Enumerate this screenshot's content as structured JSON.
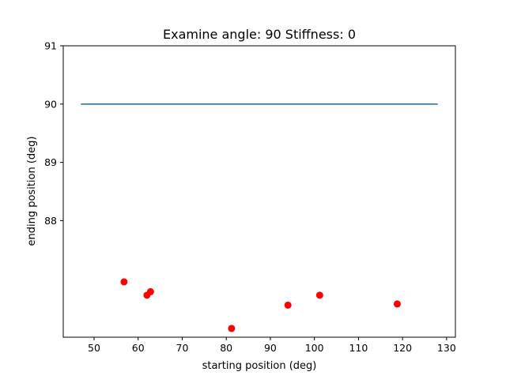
{
  "chart_data": {
    "type": "scatter",
    "title": "Examine angle: 90 Stiffness: 0",
    "xlabel": "starting position (deg)",
    "ylabel": "ending position (deg)",
    "xlim": [
      43,
      132
    ],
    "ylim": [
      86.0,
      91.0
    ],
    "xticks": [
      50,
      60,
      70,
      80,
      90,
      100,
      110,
      120,
      130
    ],
    "yticks": [
      88,
      89,
      90,
      91
    ],
    "x_tick_labels": [
      "50",
      "60",
      "70",
      "80",
      "90",
      "100",
      "110",
      "120",
      "130"
    ],
    "y_tick_labels": [
      "88",
      "89",
      "90",
      "91"
    ],
    "grid": false,
    "line": {
      "x": [
        47,
        128
      ],
      "y": [
        90,
        90
      ],
      "color": "#1f77b4"
    },
    "points": {
      "x": [
        56.8,
        62.0,
        62.8,
        81.2,
        94.0,
        101.2,
        118.8
      ],
      "y": [
        86.95,
        86.72,
        86.78,
        86.15,
        86.55,
        86.72,
        86.57
      ],
      "color": "#ff0000"
    }
  }
}
